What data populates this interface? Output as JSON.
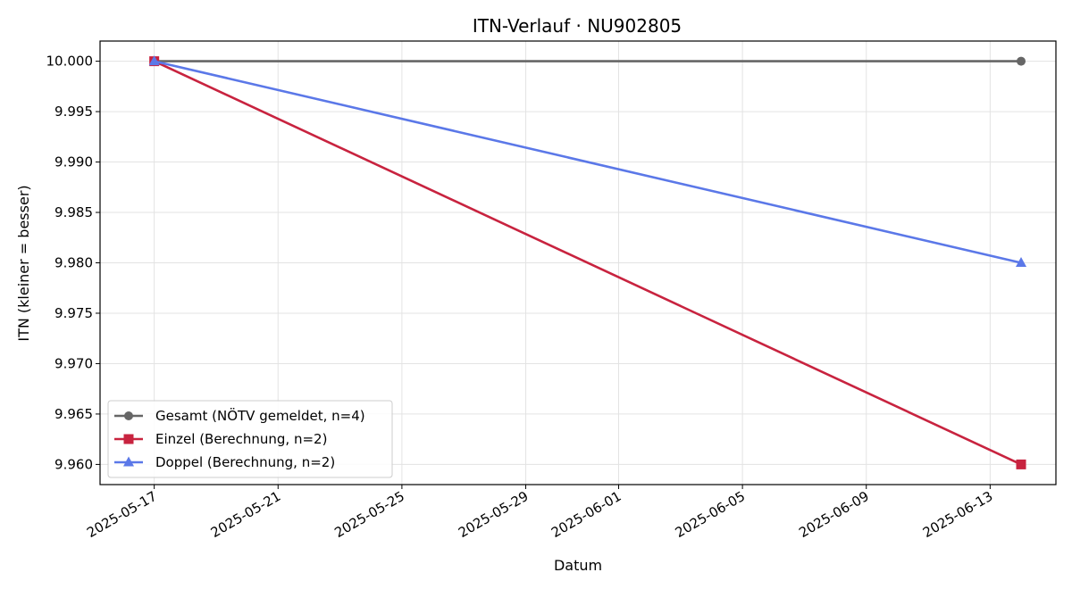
{
  "chart_data": {
    "type": "line",
    "title": "ITN-Verlauf · NU902805",
    "xlabel": "Datum",
    "ylabel": "ITN  (kleiner = besser)",
    "x": [
      "2025-05-17",
      "2025-06-14"
    ],
    "x_ticks": [
      "2025-05-17",
      "2025-05-21",
      "2025-05-25",
      "2025-05-29",
      "2025-06-01",
      "2025-06-05",
      "2025-06-09",
      "2025-06-13"
    ],
    "ylim": [
      9.958,
      10.002
    ],
    "y_ticks": [
      "9.960",
      "9.965",
      "9.970",
      "9.975",
      "9.980",
      "9.985",
      "9.990",
      "9.995",
      "10.000"
    ],
    "grid": true,
    "legend_position": "lower-left",
    "series": [
      {
        "name": "Gesamt (NÖTV gemeldet, n=4)",
        "values": [
          10.0,
          10.0
        ],
        "color": "#666666",
        "marker": "circle"
      },
      {
        "name": "Einzel (Berechnung, n=2)",
        "values": [
          10.0,
          9.96
        ],
        "color": "#c8233f",
        "marker": "square"
      },
      {
        "name": "Doppel (Berechnung, n=2)",
        "values": [
          10.0,
          9.98
        ],
        "color": "#5b78e8",
        "marker": "triangle"
      }
    ]
  }
}
